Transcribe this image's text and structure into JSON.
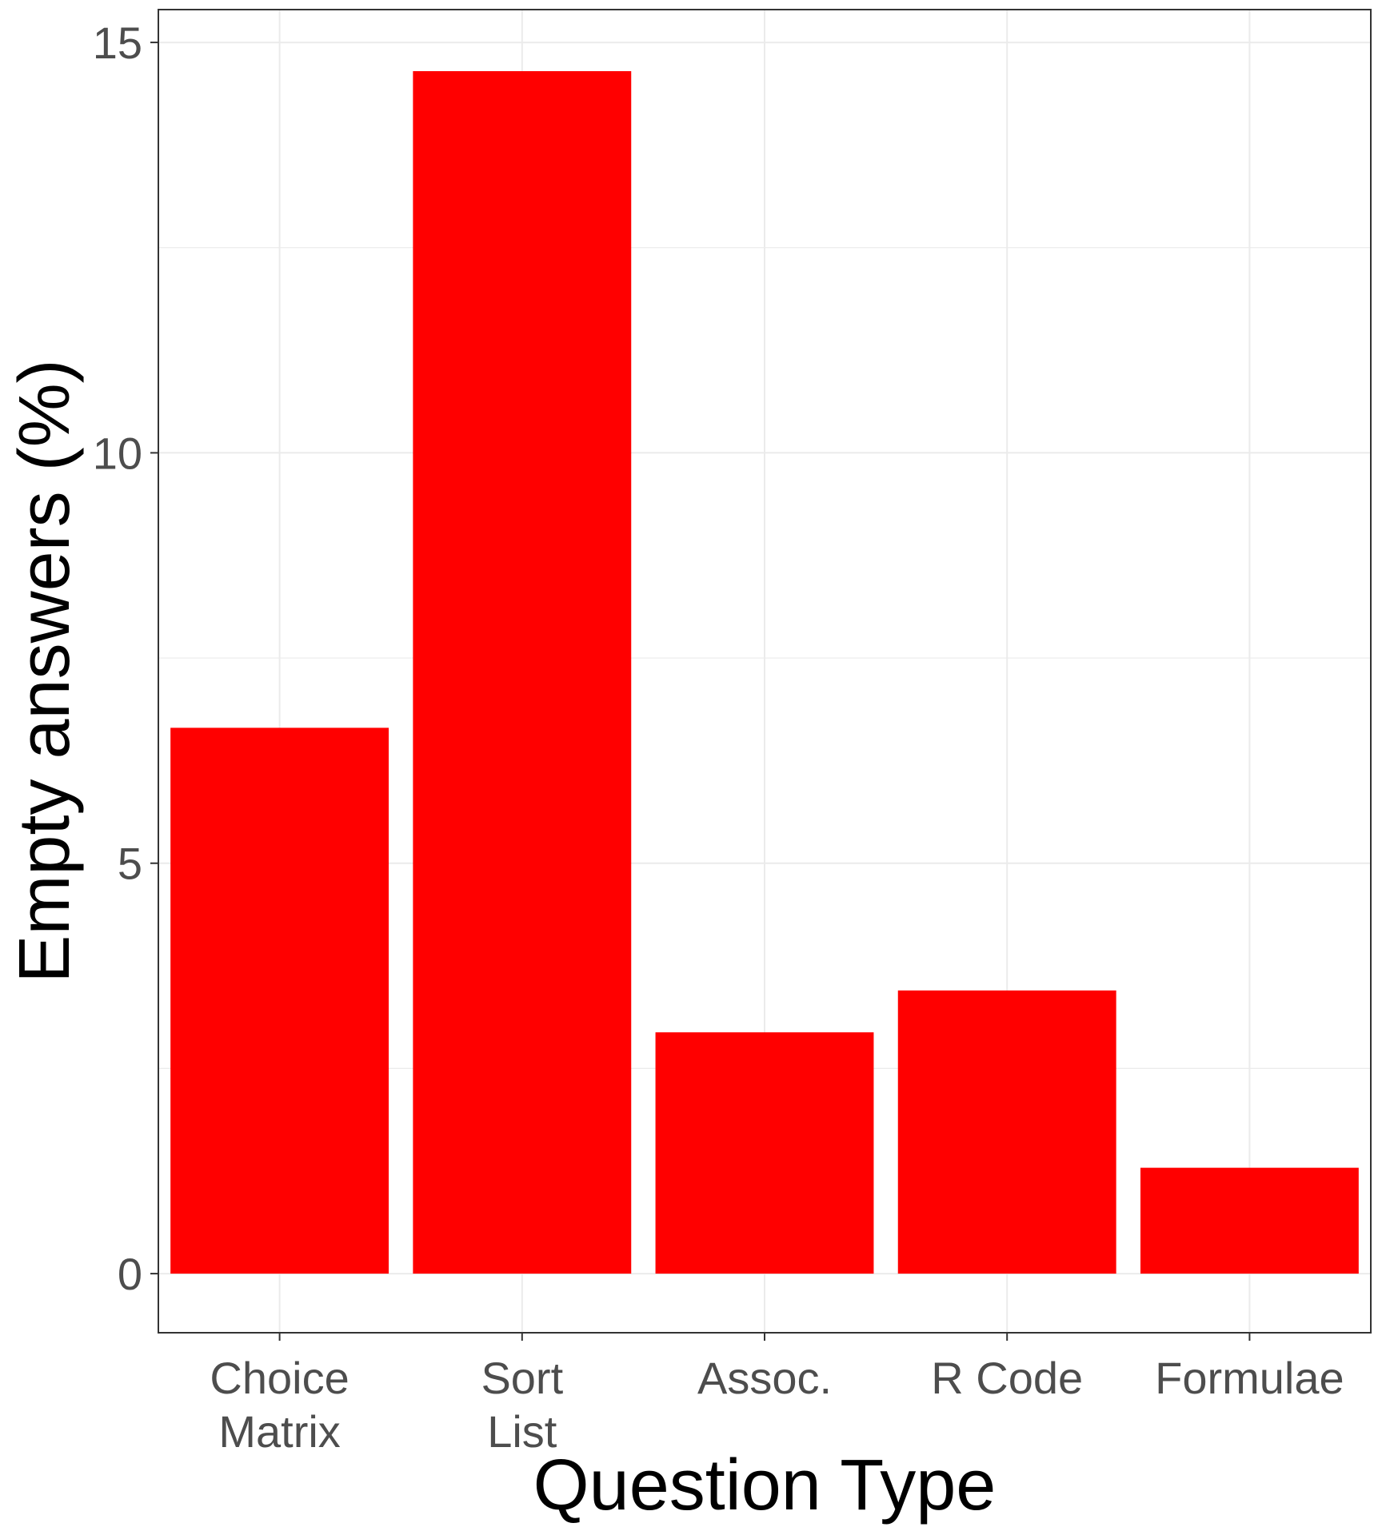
{
  "chart_data": {
    "type": "bar",
    "title": "",
    "xlabel": "Question Type",
    "ylabel": "Empty answers (%)",
    "categories": [
      [
        "Choice",
        "Matrix"
      ],
      [
        "Sort",
        "List"
      ],
      [
        "Assoc."
      ],
      [
        "R Code"
      ],
      [
        "Formulae"
      ]
    ],
    "values": [
      6.65,
      14.65,
      2.94,
      3.45,
      1.29
    ],
    "ylim": [
      -0.72,
      15.4
    ],
    "yticks": [
      0,
      5,
      10,
      15
    ],
    "ytick_labels": [
      "0",
      "5",
      "10",
      "15"
    ],
    "grid": true,
    "bar_color": "#ff0000",
    "grid_color": "#ebebeb",
    "panel_border_color": "#333333"
  }
}
